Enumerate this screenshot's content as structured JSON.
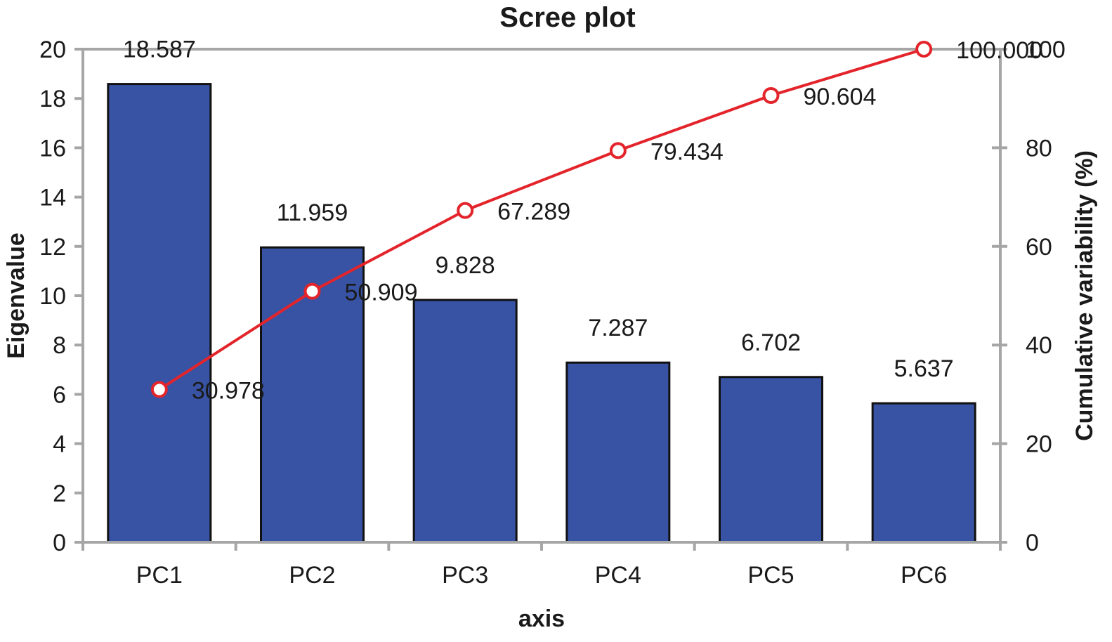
{
  "chart_data": {
    "type": "bar",
    "title": "Scree plot",
    "xlabel": "axis",
    "ylabel": "Eigenvalue",
    "y2label": "Cumulative variability (%)",
    "categories": [
      "PC1",
      "PC2",
      "PC3",
      "PC4",
      "PC5",
      "PC6"
    ],
    "series": [
      {
        "type": "bar",
        "axis": "left",
        "values": [
          18.587,
          11.959,
          9.828,
          7.287,
          6.702,
          5.637
        ],
        "labels": [
          "18.587",
          "11.959",
          "9.828",
          "7.287",
          "6.702",
          "5.637"
        ],
        "color": "#3853a4"
      },
      {
        "type": "line",
        "axis": "right",
        "values": [
          30.978,
          50.909,
          67.289,
          79.434,
          90.604,
          100.0
        ],
        "labels": [
          "30.978",
          "50.909",
          "67.289",
          "79.434",
          "90.604",
          "100.000"
        ],
        "color": "#e3242b"
      }
    ],
    "ylim": [
      0,
      20
    ],
    "yticks": [
      "0",
      "2",
      "4",
      "6",
      "8",
      "10",
      "12",
      "14",
      "16",
      "18",
      "20"
    ],
    "y2lim": [
      0,
      100
    ],
    "y2ticks": [
      "0",
      "20",
      "40",
      "60",
      "80",
      "100"
    ],
    "grid": false,
    "legend": "none"
  }
}
